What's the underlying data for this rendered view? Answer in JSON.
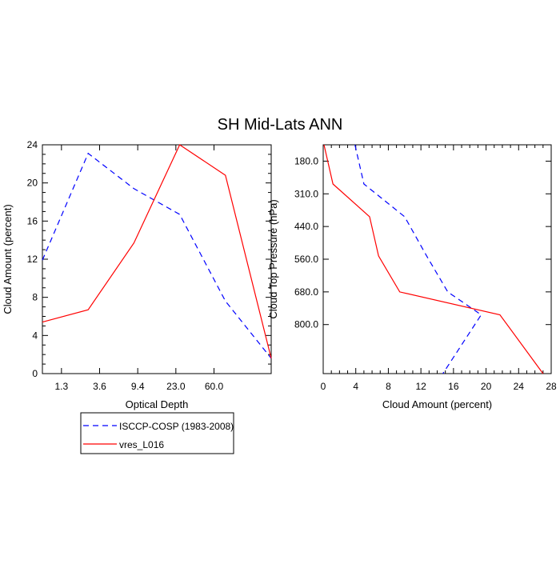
{
  "title": "SH Mid-Lats ANN",
  "colors": {
    "series1": "#0000ff",
    "series2": "#ff0000",
    "axis": "#000000"
  },
  "legend": {
    "placement": "bottom-left",
    "entries": [
      {
        "label": "ISCCP-COSP (1983-2008)",
        "color": "#0000ff",
        "style": "dashed"
      },
      {
        "label": "vres_L016",
        "color": "#ff0000",
        "style": "solid"
      }
    ]
  },
  "chart_data": [
    {
      "type": "line",
      "xlabel": "Optical Depth",
      "ylabel": "Cloud Amount (percent)",
      "xlim": [
        0,
        6
      ],
      "ylim": [
        0,
        24
      ],
      "x_ticks": [
        {
          "v": 0.5,
          "label": "1.3"
        },
        {
          "v": 1.5,
          "label": "3.6"
        },
        {
          "v": 2.5,
          "label": "9.4"
        },
        {
          "v": 3.5,
          "label": "23.0"
        },
        {
          "v": 4.5,
          "label": "60.0"
        }
      ],
      "y_ticks": [
        {
          "v": 0,
          "label": "0"
        },
        {
          "v": 4,
          "label": "4"
        },
        {
          "v": 8,
          "label": "8"
        },
        {
          "v": 12,
          "label": "12"
        },
        {
          "v": 16,
          "label": "16"
        },
        {
          "v": 20,
          "label": "20"
        },
        {
          "v": 24,
          "label": "24"
        }
      ],
      "series": [
        {
          "name": "ISCCP-COSP (1983-2008)",
          "color": "#0000ff",
          "dash": "dashed",
          "x": [
            0,
            1.2,
            2.4,
            3.6,
            4.8,
            6.0
          ],
          "y": [
            11.9,
            23.1,
            19.4,
            16.7,
            7.6,
            1.6
          ]
        },
        {
          "name": "vres_L016",
          "color": "#ff0000",
          "dash": "solid",
          "x": [
            0,
            1.2,
            2.4,
            3.6,
            4.8,
            6.0
          ],
          "y": [
            5.4,
            6.7,
            13.7,
            24.0,
            20.8,
            1.6
          ]
        }
      ]
    },
    {
      "type": "line",
      "xlabel": "Cloud Amount (percent)",
      "ylabel": "Cloud Top Pressure (hPa)",
      "xlim": [
        0,
        28
      ],
      "ylim": [
        0,
        7
      ],
      "x_ticks": [
        {
          "v": 0,
          "label": "0"
        },
        {
          "v": 4,
          "label": "4"
        },
        {
          "v": 8,
          "label": "8"
        },
        {
          "v": 12,
          "label": "12"
        },
        {
          "v": 16,
          "label": "16"
        },
        {
          "v": 20,
          "label": "20"
        },
        {
          "v": 24,
          "label": "24"
        },
        {
          "v": 28,
          "label": "28"
        }
      ],
      "y_ticks": [
        {
          "v": 0.5,
          "label": "180.0"
        },
        {
          "v": 1.5,
          "label": "310.0"
        },
        {
          "v": 2.5,
          "label": "440.0"
        },
        {
          "v": 3.5,
          "label": "560.0"
        },
        {
          "v": 4.5,
          "label": "680.0"
        },
        {
          "v": 5.5,
          "label": "800.0"
        }
      ],
      "series": [
        {
          "name": "ISCCP-COSP (1983-2008)",
          "color": "#0000ff",
          "dash": "dashed",
          "x": [
            3.9,
            5.0,
            10.0,
            12.7,
            15.3,
            19.4,
            14.7
          ],
          "y": [
            0,
            1.2,
            2.2,
            3.4,
            4.5,
            5.2,
            7.0
          ]
        },
        {
          "name": "vres_L016",
          "color": "#ff0000",
          "dash": "solid",
          "x": [
            0.1,
            1.2,
            5.7,
            6.8,
            9.4,
            21.7,
            27.0
          ],
          "y": [
            0,
            1.2,
            2.2,
            3.4,
            4.5,
            5.2,
            7.0
          ]
        }
      ]
    }
  ]
}
